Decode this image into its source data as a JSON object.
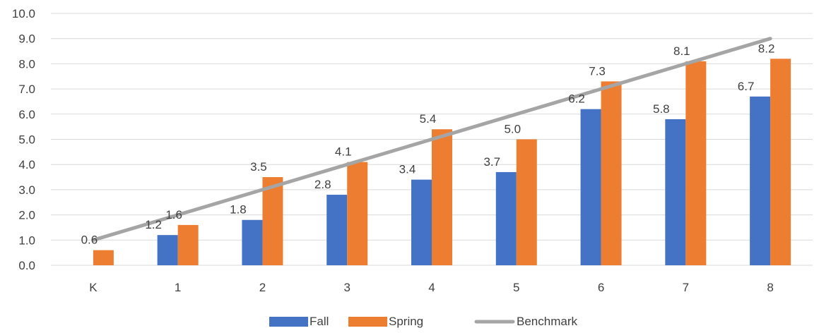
{
  "chart_data": {
    "type": "bar",
    "title": "",
    "xlabel": "",
    "ylabel": "",
    "categories": [
      "K",
      "1",
      "2",
      "3",
      "4",
      "5",
      "6",
      "7",
      "8"
    ],
    "ylim": [
      0,
      10
    ],
    "yticks": [
      "0.0",
      "1.0",
      "2.0",
      "3.0",
      "4.0",
      "5.0",
      "6.0",
      "7.0",
      "8.0",
      "9.0",
      "10.0"
    ],
    "grid": true,
    "legend_position": "bottom",
    "series": [
      {
        "name": "Fall",
        "kind": "bar",
        "color": "#4472C4",
        "values": [
          null,
          1.2,
          1.8,
          2.8,
          3.4,
          3.7,
          6.2,
          5.8,
          6.7
        ],
        "labels": [
          "",
          "1.2",
          "1.8",
          "2.8",
          "3.4",
          "3.7",
          "6.2",
          "5.8",
          "6.7"
        ]
      },
      {
        "name": "Spring",
        "kind": "bar",
        "color": "#ED7D31",
        "values": [
          0.6,
          1.6,
          3.5,
          4.1,
          5.4,
          5.0,
          7.3,
          8.1,
          8.2
        ],
        "labels": [
          "0.6",
          "1.6",
          "3.5",
          "4.1",
          "5.4",
          "5.0",
          "7.3",
          "8.1",
          "8.2"
        ]
      },
      {
        "name": "Benchmark",
        "kind": "line",
        "color": "#A5A5A5",
        "values": [
          1,
          2,
          3,
          4,
          5,
          6,
          7,
          8,
          9
        ]
      }
    ]
  }
}
